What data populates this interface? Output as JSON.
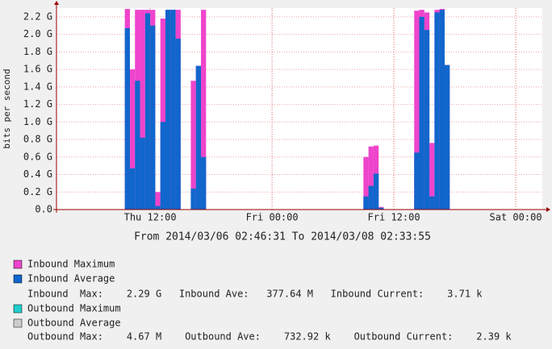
{
  "chart_data": {
    "type": "bar",
    "y_label": "bits per second",
    "subtitle": "From 2014/03/06 02:46:31 To 2014/03/08 02:33:55",
    "x": [
      9.5,
      10,
      10.5,
      11,
      11.5,
      12,
      12.5,
      13,
      13.5,
      14,
      14.5,
      16,
      16.5,
      17,
      33,
      33.5,
      34,
      34.5,
      38,
      38.5,
      39,
      39.5,
      40,
      40.5,
      41
    ],
    "xlim": [
      2.77,
      50.62
    ],
    "xticks": [
      {
        "value": 12,
        "label": "Thu 12:00"
      },
      {
        "value": 24,
        "label": "Fri 00:00"
      },
      {
        "value": 36,
        "label": "Fri 12:00"
      },
      {
        "value": 48,
        "label": "Sat 00:00"
      }
    ],
    "ylim": [
      0,
      2.3
    ],
    "yticks": [
      {
        "value": 0,
        "label": "0.0"
      },
      {
        "value": 0.2,
        "label": "0.2 G"
      },
      {
        "value": 0.4,
        "label": "0.4 G"
      },
      {
        "value": 0.6,
        "label": "0.6 G"
      },
      {
        "value": 0.8,
        "label": "0.8 G"
      },
      {
        "value": 1.0,
        "label": "1.0 G"
      },
      {
        "value": 1.2,
        "label": "1.2 G"
      },
      {
        "value": 1.4,
        "label": "1.4 G"
      },
      {
        "value": 1.6,
        "label": "1.6 G"
      },
      {
        "value": 1.8,
        "label": "1.8 G"
      },
      {
        "value": 2.0,
        "label": "2.0 G"
      },
      {
        "value": 2.2,
        "label": "2.2 G"
      }
    ],
    "grid": true,
    "series": [
      {
        "name": "Inbound Maximum",
        "color": "#ee44cc",
        "values": [
          2.29,
          1.6,
          2.28,
          2.28,
          2.28,
          2.28,
          0.2,
          2.18,
          2.28,
          2.28,
          2.28,
          1.47,
          1.64,
          2.28,
          0.6,
          0.72,
          0.73,
          0.03,
          2.27,
          2.28,
          2.25,
          0.76,
          2.28,
          2.29,
          1.65
        ]
      },
      {
        "name": "Inbound Average",
        "color": "#1166cc",
        "values": [
          2.07,
          0.47,
          1.47,
          0.82,
          2.24,
          2.1,
          0.04,
          1.0,
          2.28,
          2.28,
          1.95,
          0.24,
          1.64,
          0.6,
          0.15,
          0.27,
          0.41,
          0.02,
          0.65,
          2.2,
          2.05,
          0.15,
          2.25,
          2.28,
          1.65
        ]
      },
      {
        "name": "Outbound Maximum",
        "color": "#22cccc",
        "values": [
          0,
          0,
          0,
          0,
          0,
          0,
          0,
          0,
          0,
          0,
          0,
          0,
          0,
          0,
          0,
          0,
          0,
          0,
          0,
          0,
          0,
          0,
          0,
          0,
          0
        ]
      },
      {
        "name": "Outbound Average",
        "color": "#cccccc",
        "values": [
          0,
          0,
          0,
          0,
          0,
          0,
          0,
          0,
          0,
          0,
          0,
          0,
          0,
          0,
          0,
          0,
          0,
          0,
          0,
          0,
          0,
          0,
          0,
          0,
          0
        ]
      }
    ],
    "stats": [
      "Inbound  Max:    2.29 G   Inbound Ave:   377.64 M   Inbound Current:    3.71 k",
      "Outbound Max:    4.67 M    Outbound Ave:    732.92 k    Outbound Current:    2.39 k"
    ]
  }
}
